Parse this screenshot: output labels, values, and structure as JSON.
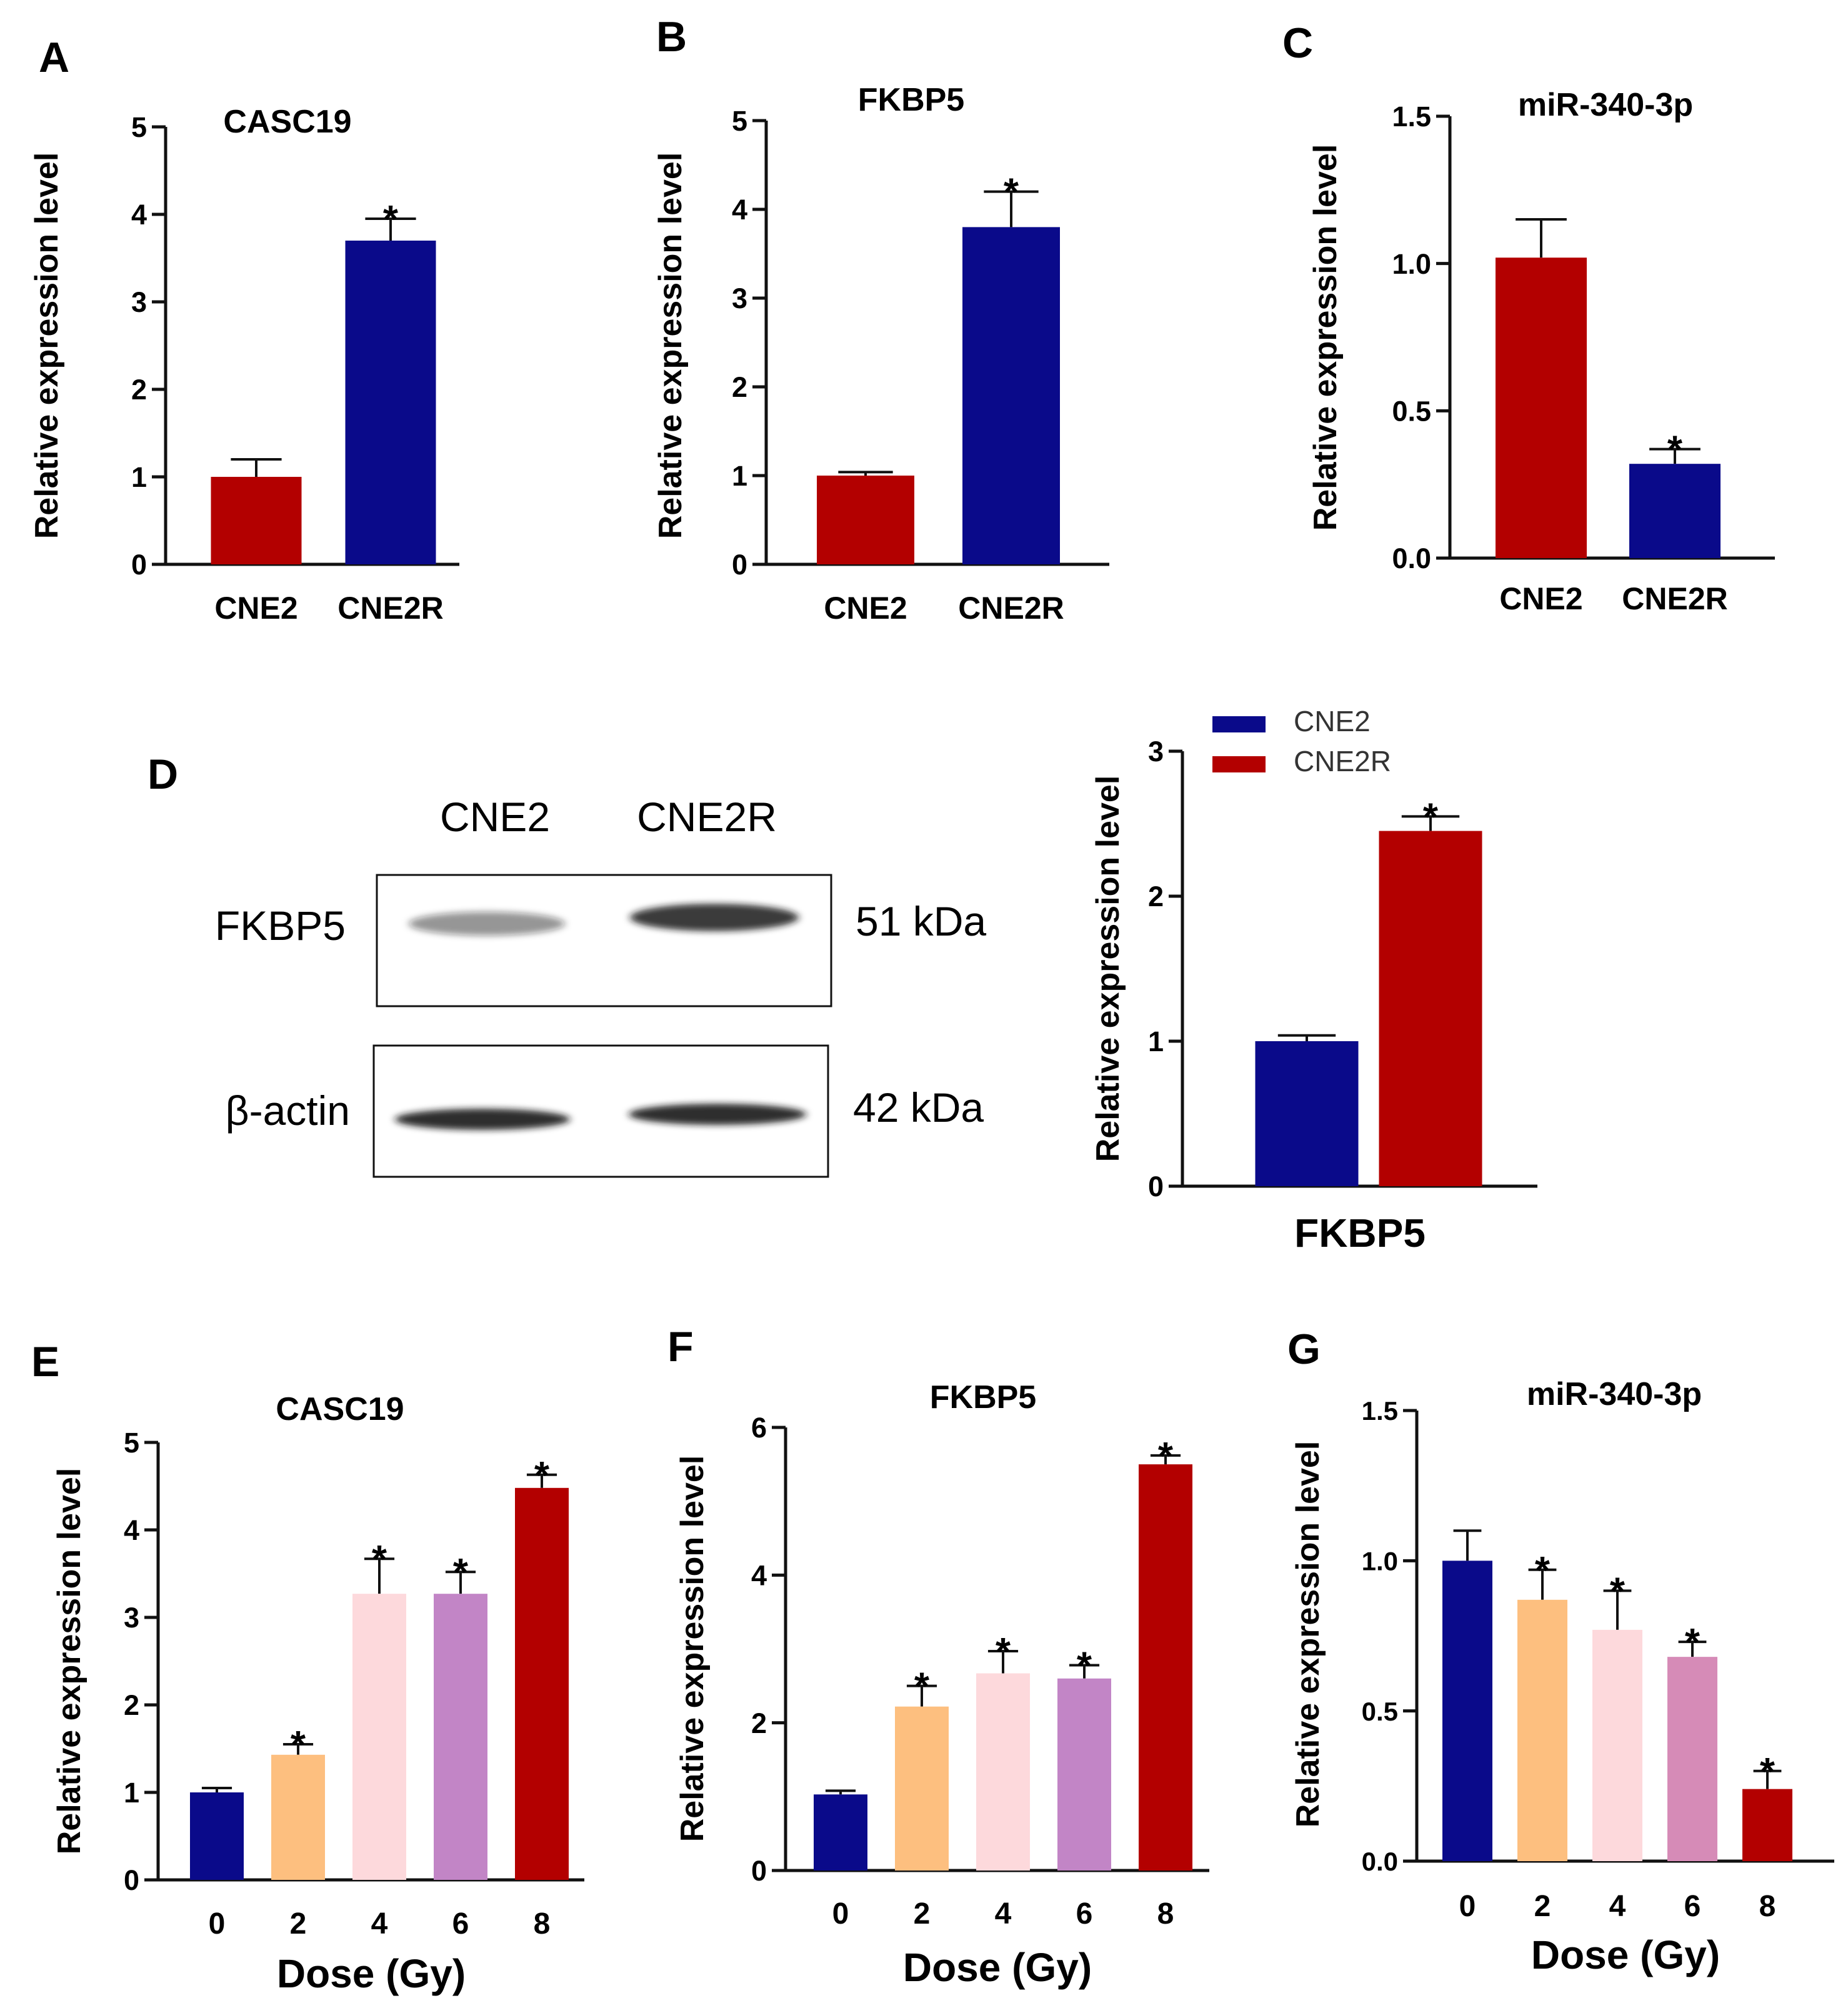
{
  "figure": {
    "panel_letters": [
      "A",
      "B",
      "C",
      "D",
      "E",
      "F",
      "G"
    ],
    "colors": {
      "navy": "#0a0a8a",
      "red": "#b30000",
      "orange": "#fdbf7f",
      "pink": "#fdd9dc",
      "purple": "#c285c6",
      "mauve": "#d68bb7",
      "axis": "#111111"
    }
  },
  "blot": {
    "letter": "D",
    "lanes": [
      "CNE2",
      "CNE2R"
    ],
    "rows": [
      {
        "label": "FKBP5",
        "size": "51 kDa",
        "band_intensity": [
          0.45,
          0.85
        ]
      },
      {
        "label": "β-actin",
        "size": "42 kDa",
        "band_intensity": [
          0.9,
          0.9
        ]
      }
    ]
  },
  "chart_data": [
    {
      "id": "A",
      "type": "bar",
      "title": "CASC19",
      "xlabel": "",
      "ylabel": "Relative expression level",
      "categories": [
        "CNE2",
        "CNE2R"
      ],
      "values": [
        1.0,
        3.7
      ],
      "errors": [
        0.2,
        0.25
      ],
      "sig": [
        "",
        "*"
      ],
      "colors": [
        "red",
        "navy"
      ],
      "ylim": [
        0,
        5
      ],
      "yticks": [
        "0",
        "1",
        "2",
        "3",
        "4",
        "5"
      ]
    },
    {
      "id": "B",
      "type": "bar",
      "title": "FKBP5",
      "xlabel": "",
      "ylabel": "Relative expression level",
      "categories": [
        "CNE2",
        "CNE2R"
      ],
      "values": [
        1.0,
        3.8
      ],
      "errors": [
        0.04,
        0.4
      ],
      "sig": [
        "",
        "*"
      ],
      "colors": [
        "red",
        "navy"
      ],
      "ylim": [
        0,
        5
      ],
      "yticks": [
        "0",
        "1",
        "2",
        "3",
        "4",
        "5"
      ]
    },
    {
      "id": "C",
      "type": "bar",
      "title": "miR-340-3p",
      "xlabel": "",
      "ylabel": "Relative expression level",
      "categories": [
        "CNE2",
        "CNE2R"
      ],
      "values": [
        1.02,
        0.32
      ],
      "errors": [
        0.13,
        0.05
      ],
      "sig": [
        "",
        "*"
      ],
      "colors": [
        "red",
        "navy"
      ],
      "ylim": [
        0,
        1.5
      ],
      "yticks": [
        "0.0",
        "0.5",
        "1.0",
        "1.5"
      ]
    },
    {
      "id": "D",
      "type": "bar",
      "title": "",
      "xlabel": "FKBP5",
      "ylabel": "Relative expression level",
      "categories": [
        "CNE2",
        "CNE2R"
      ],
      "values": [
        1.0,
        2.45
      ],
      "errors": [
        0.04,
        0.1
      ],
      "sig": [
        "",
        "*"
      ],
      "colors": [
        "navy",
        "red"
      ],
      "legend": [
        "CNE2",
        "CNE2R"
      ],
      "legend_position": "top-left",
      "ylim": [
        0,
        3
      ],
      "yticks": [
        "0",
        "1",
        "2",
        "3"
      ]
    },
    {
      "id": "E",
      "type": "bar",
      "title": "CASC19",
      "xlabel": "Dose (Gy)",
      "ylabel": "Relative expression level",
      "categories": [
        "0",
        "2",
        "4",
        "6",
        "8"
      ],
      "values": [
        1.0,
        1.43,
        3.27,
        3.27,
        4.48
      ],
      "errors": [
        0.05,
        0.12,
        0.4,
        0.25,
        0.15
      ],
      "sig": [
        "",
        "*",
        "*",
        "*",
        "*"
      ],
      "colors": [
        "navy",
        "orange",
        "pink",
        "purple",
        "red"
      ],
      "ylim": [
        0,
        5
      ],
      "yticks": [
        "0",
        "1",
        "2",
        "3",
        "4",
        "5"
      ]
    },
    {
      "id": "F",
      "type": "bar",
      "title": "FKBP5",
      "xlabel": "Dose (Gy)",
      "ylabel": "Relative expression level",
      "categories": [
        "0",
        "2",
        "4",
        "6",
        "8"
      ],
      "values": [
        1.03,
        2.22,
        2.67,
        2.6,
        5.5
      ],
      "errors": [
        0.05,
        0.28,
        0.3,
        0.18,
        0.12
      ],
      "sig": [
        "",
        "*",
        "*",
        "*",
        "*"
      ],
      "colors": [
        "navy",
        "orange",
        "pink",
        "purple",
        "red"
      ],
      "ylim": [
        0,
        6
      ],
      "yticks": [
        "0",
        "2",
        "4",
        "6"
      ]
    },
    {
      "id": "G",
      "type": "bar",
      "title": "miR-340-3p",
      "xlabel": "Dose (Gy)",
      "ylabel": "Relative expression level",
      "categories": [
        "0",
        "2",
        "4",
        "6",
        "8"
      ],
      "values": [
        1.0,
        0.87,
        0.77,
        0.68,
        0.24
      ],
      "errors": [
        0.1,
        0.1,
        0.13,
        0.05,
        0.06
      ],
      "sig": [
        "",
        "*",
        "*",
        "*",
        "*"
      ],
      "colors": [
        "navy",
        "orange",
        "pink",
        "mauve",
        "red"
      ],
      "ylim": [
        0,
        1.5
      ],
      "yticks": [
        "0.0",
        "0.5",
        "1.0",
        "1.5"
      ]
    }
  ]
}
